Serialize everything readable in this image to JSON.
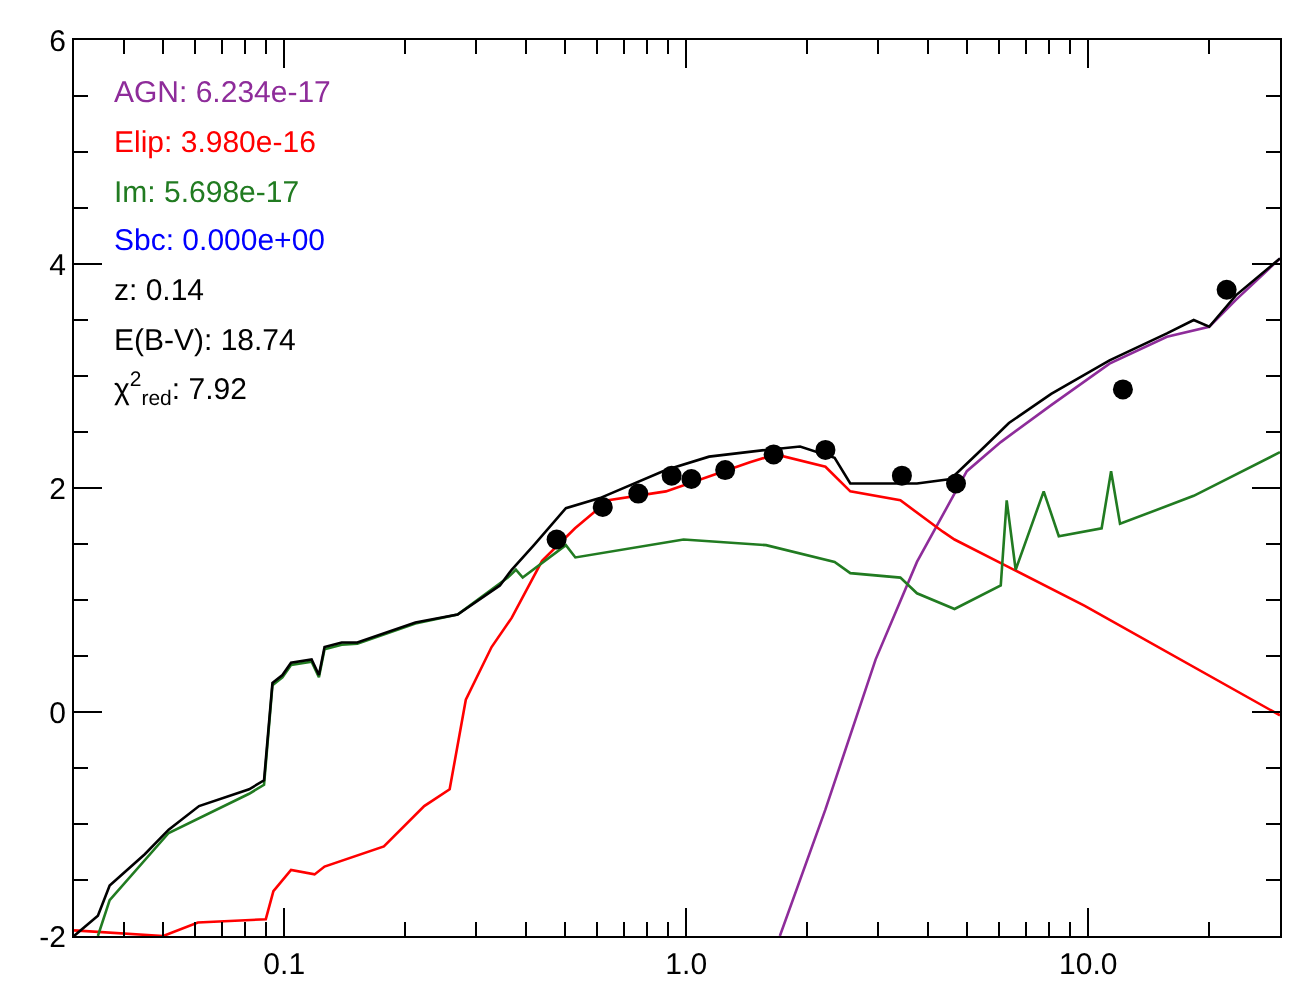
{
  "chart_data": {
    "type": "line",
    "log": "x",
    "xlim": [
      0.03,
      30
    ],
    "ylim": [
      -2,
      6
    ],
    "xticks": [
      {
        "value": 0.04,
        "label": null
      },
      {
        "value": 0.05,
        "label": null
      },
      {
        "value": 0.06,
        "label": null
      },
      {
        "value": 0.07,
        "label": null
      },
      {
        "value": 0.08,
        "label": null
      },
      {
        "value": 0.09,
        "label": null
      },
      {
        "value": 0.1,
        "label": "0.1"
      },
      {
        "value": 0.2,
        "label": null
      },
      {
        "value": 0.3,
        "label": null
      },
      {
        "value": 0.4,
        "label": null
      },
      {
        "value": 0.5,
        "label": null
      },
      {
        "value": 0.6,
        "label": null
      },
      {
        "value": 0.7,
        "label": null
      },
      {
        "value": 0.8,
        "label": null
      },
      {
        "value": 0.9,
        "label": null
      },
      {
        "value": 1,
        "label": "1.0"
      },
      {
        "value": 2,
        "label": null
      },
      {
        "value": 3,
        "label": null
      },
      {
        "value": 4,
        "label": null
      },
      {
        "value": 5,
        "label": null
      },
      {
        "value": 6,
        "label": null
      },
      {
        "value": 7,
        "label": null
      },
      {
        "value": 8,
        "label": null
      },
      {
        "value": 9,
        "label": null
      },
      {
        "value": 10,
        "label": "10.0"
      },
      {
        "value": 20,
        "label": null
      }
    ],
    "yticks": [
      -2,
      {
        "value": -1.5,
        "label": null
      },
      {
        "value": -1,
        "label": null
      },
      {
        "value": -0.5,
        "label": null
      },
      0,
      {
        "value": 0.5,
        "label": null
      },
      {
        "value": 1,
        "label": null
      },
      {
        "value": 1.5,
        "label": null
      },
      2,
      {
        "value": 2.5,
        "label": null
      },
      {
        "value": 3,
        "label": null
      },
      {
        "value": 3.5,
        "label": null
      },
      4,
      {
        "value": 4.5,
        "label": null
      },
      {
        "value": 5,
        "label": null
      },
      {
        "value": 5.5,
        "label": null
      },
      6
    ],
    "series": [
      {
        "name": "AGN: 6.234e-17",
        "color": "#8e2c9a",
        "x": [
          1.71,
          2.22,
          2.96,
          3.75,
          4.99,
          6.06,
          8.09,
          11.3,
          15.7,
          20.0,
          23.3,
          30
        ],
        "values": [
          -2.0,
          -0.87,
          0.47,
          1.34,
          2.15,
          2.41,
          2.74,
          3.11,
          3.35,
          3.44,
          3.68,
          4.05
        ]
      },
      {
        "name": "Elip: 3.980e-16",
        "color": "#ff0000",
        "x": [
          0.03,
          0.05,
          0.061,
          0.09,
          0.094,
          0.104,
          0.119,
          0.126,
          0.177,
          0.223,
          0.258,
          0.283,
          0.328,
          0.368,
          0.438,
          0.529,
          0.64,
          0.89,
          1.44,
          1.67,
          2.22,
          2.56,
          3.41,
          4.35,
          4.65,
          9.78,
          30
        ],
        "values": [
          -1.95,
          -2.0,
          -1.88,
          -1.85,
          -1.6,
          -1.41,
          -1.45,
          -1.38,
          -1.2,
          -0.84,
          -0.69,
          0.11,
          0.58,
          0.84,
          1.35,
          1.64,
          1.89,
          1.97,
          2.23,
          2.3,
          2.19,
          1.97,
          1.89,
          1.61,
          1.54,
          0.95,
          -0.03
        ]
      },
      {
        "name": "Im: 5.698e-17",
        "color": "#217b21",
        "x": [
          0.0344,
          0.0368,
          0.0516,
          0.0818,
          0.0891,
          0.0935,
          0.099,
          0.104,
          0.117,
          0.122,
          0.126,
          0.139,
          0.152,
          0.212,
          0.27,
          0.36,
          0.377,
          0.392,
          0.502,
          0.53,
          0.985,
          1.58,
          2.34,
          2.56,
          3.41,
          3.75,
          4.65,
          6.06,
          6.27,
          6.6,
          7.75,
          8.45,
          10.8,
          11.4,
          12.0,
          18.3,
          30
        ],
        "values": [
          -2.0,
          -1.68,
          -1.08,
          -0.73,
          -0.65,
          0.24,
          0.31,
          0.42,
          0.45,
          0.31,
          0.56,
          0.6,
          0.61,
          0.79,
          0.87,
          1.2,
          1.27,
          1.2,
          1.49,
          1.38,
          1.54,
          1.49,
          1.34,
          1.24,
          1.2,
          1.06,
          0.92,
          1.13,
          1.89,
          1.27,
          1.97,
          1.57,
          1.64,
          2.15,
          1.68,
          1.93,
          2.32
        ]
      },
      {
        "name": "Sbc: 0.000e+00",
        "color": "#0000ff"
      },
      {
        "color": "#000000",
        "x": [
          0.03,
          0.0344,
          0.0368,
          0.045,
          0.0516,
          0.0614,
          0.0818,
          0.0891,
          0.0935,
          0.099,
          0.104,
          0.117,
          0.122,
          0.126,
          0.139,
          0.152,
          0.212,
          0.27,
          0.344,
          0.368,
          0.418,
          0.502,
          0.61,
          0.89,
          1.14,
          1.58,
          1.92,
          2.34,
          2.56,
          3.75,
          4.55,
          5.53,
          6.35,
          8.09,
          11.3,
          15.7,
          18.3,
          20.0,
          23.3,
          30
        ],
        "values": [
          -2.0,
          -1.82,
          -1.55,
          -1.27,
          -1.05,
          -0.84,
          -0.69,
          -0.61,
          0.26,
          0.33,
          0.44,
          0.47,
          0.33,
          0.58,
          0.62,
          0.62,
          0.8,
          0.87,
          1.13,
          1.27,
          1.49,
          1.82,
          1.91,
          2.16,
          2.28,
          2.34,
          2.37,
          2.27,
          2.04,
          2.04,
          2.08,
          2.37,
          2.58,
          2.84,
          3.14,
          3.38,
          3.5,
          3.44,
          3.72,
          4.05
        ]
      },
      {
        "type": "scatter",
        "marker": "circle",
        "color": "#000000",
        "x": [
          0.476,
          0.62,
          0.76,
          0.92,
          1.03,
          1.25,
          1.65,
          2.22,
          3.44,
          4.69,
          12.2,
          22.1
        ],
        "values": [
          1.54,
          1.83,
          1.95,
          2.11,
          2.08,
          2.16,
          2.3,
          2.34,
          2.11,
          2.04,
          2.88,
          3.77
        ],
        "errors": [
          0.04,
          0.04,
          0.04,
          0.04,
          0.04,
          0.04,
          0.04,
          0.04,
          0.04,
          0.04,
          0.04,
          0.04
        ]
      }
    ],
    "annotations": [
      "z: 0.14",
      "E(B-V): 18.74",
      "χ$^{2}$$_{red}$: 7.92"
    ]
  }
}
